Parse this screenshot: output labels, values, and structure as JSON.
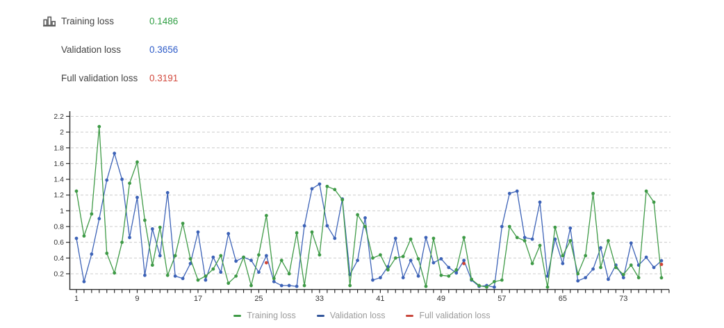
{
  "stats": {
    "rows": [
      {
        "label": "Training loss",
        "value": "0.1486",
        "color": "#2f9e43"
      },
      {
        "label": "Validation loss",
        "value": "0.3656",
        "color": "#2d5bc8"
      },
      {
        "label": "Full validation loss",
        "value": "0.3191",
        "color": "#d2483c"
      }
    ]
  },
  "legend": {
    "items": [
      {
        "label": "Training loss",
        "color": "#3e9a46"
      },
      {
        "label": "Validation loss",
        "color": "#33569b"
      },
      {
        "label": "Full validation loss",
        "color": "#c9473c"
      }
    ]
  },
  "chart_data": {
    "type": "line",
    "title": "",
    "xlabel": "",
    "ylabel": "",
    "x_start": 1,
    "x_step": 1,
    "n_points": 78,
    "xlim": [
      0,
      79
    ],
    "ylim": [
      0,
      2.3
    ],
    "grid": true,
    "legend_position": "bottom",
    "x_ticks_labeled": [
      1,
      9,
      17,
      25,
      33,
      41,
      49,
      57,
      65,
      73
    ],
    "y_ticks": [
      {
        "v": 2.2,
        "label": "2.2"
      },
      {
        "v": 2.0,
        "label": "2"
      },
      {
        "v": 1.8,
        "label": "1.8"
      },
      {
        "v": 1.6,
        "label": "1.6"
      },
      {
        "v": 1.4,
        "label": "1.4"
      },
      {
        "v": 1.2,
        "label": "1.2"
      },
      {
        "v": 1.0,
        "label": "1"
      },
      {
        "v": 0.8,
        "label": "0.8"
      },
      {
        "v": 0.6,
        "label": "0.6"
      },
      {
        "v": 0.4,
        "label": "0.4"
      },
      {
        "v": 0.2,
        "label": "0.2"
      }
    ],
    "series": [
      {
        "name": "Validation loss",
        "color": "#3c62b7",
        "values": [
          0.65,
          0.1,
          0.45,
          0.9,
          1.39,
          1.73,
          1.4,
          0.66,
          1.17,
          0.18,
          0.77,
          0.43,
          1.23,
          0.17,
          0.14,
          0.33,
          0.73,
          0.12,
          0.41,
          0.22,
          0.71,
          0.36,
          0.41,
          0.37,
          0.22,
          0.43,
          0.1,
          0.05,
          0.05,
          0.04,
          0.81,
          1.28,
          1.34,
          0.81,
          0.65,
          1.15,
          0.19,
          0.37,
          0.91,
          0.12,
          0.15,
          0.29,
          0.65,
          0.15,
          0.37,
          0.17,
          0.66,
          0.34,
          0.39,
          0.28,
          0.21,
          0.37,
          0.12,
          0.04,
          0.05,
          0.03,
          0.8,
          1.22,
          1.25,
          0.66,
          0.64,
          1.11,
          0.17,
          0.64,
          0.33,
          0.78,
          0.11,
          0.15,
          0.26,
          0.53,
          0.13,
          0.31,
          0.15,
          0.59,
          0.31,
          0.41,
          0.28,
          0.3656
        ]
      },
      {
        "name": "Training loss",
        "color": "#3e9a46",
        "values": [
          1.25,
          0.68,
          0.96,
          2.07,
          0.46,
          0.21,
          0.6,
          1.35,
          1.62,
          0.88,
          0.31,
          0.79,
          0.18,
          0.43,
          0.84,
          0.39,
          0.12,
          0.17,
          0.26,
          0.43,
          0.08,
          0.17,
          0.41,
          0.05,
          0.44,
          0.94,
          0.14,
          0.37,
          0.2,
          0.72,
          0.05,
          0.73,
          0.44,
          1.31,
          1.27,
          1.14,
          0.05,
          0.95,
          0.8,
          0.4,
          0.44,
          0.25,
          0.4,
          0.42,
          0.64,
          0.39,
          0.04,
          0.65,
          0.18,
          0.17,
          0.25,
          0.66,
          0.13,
          0.05,
          0.03,
          0.1,
          0.12,
          0.8,
          0.66,
          0.62,
          0.33,
          0.56,
          0.03,
          0.79,
          0.43,
          0.62,
          0.2,
          0.43,
          1.22,
          0.28,
          0.62,
          0.28,
          0.19,
          0.31,
          0.15,
          1.25,
          1.11,
          0.1486
        ]
      },
      {
        "name": "Full validation loss",
        "color": "#cf4436",
        "points": [
          {
            "x": 26,
            "y": 0.34
          },
          {
            "x": 52,
            "y": 0.33
          },
          {
            "x": 78,
            "y": 0.3191
          }
        ]
      }
    ]
  }
}
